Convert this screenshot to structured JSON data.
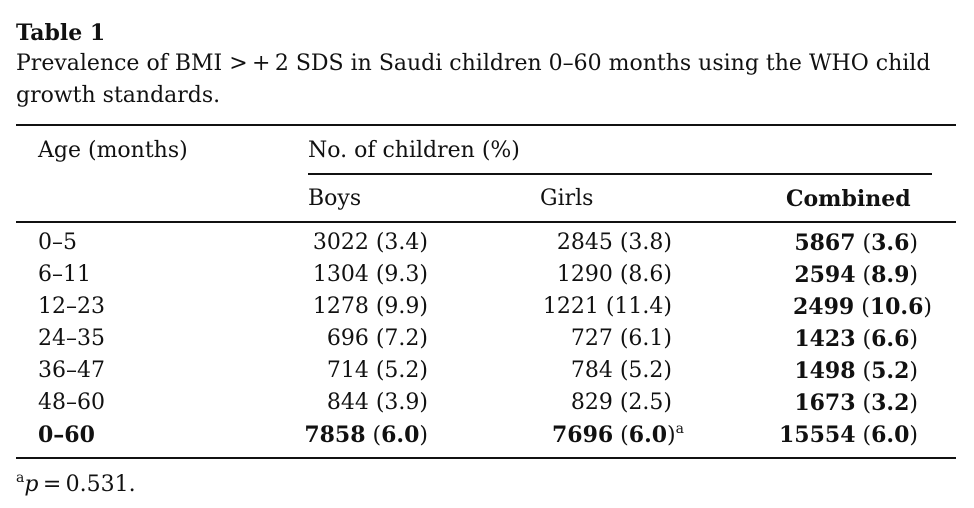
{
  "table": {
    "label": "Table 1",
    "caption": "Prevalence of BMI > + 2 SDS in Saudi children 0–60 months using the WHO child growth standards.",
    "headers": {
      "age": "Age (months)",
      "group": "No. of children (%)",
      "boys": "Boys",
      "girls": "Girls",
      "combined": "Combined"
    },
    "rows": [
      {
        "age": "0–5",
        "boys": "3022 (3.4)",
        "girls": "2845 (3.8)",
        "combined_n": "5867",
        "combined_p": "3.6"
      },
      {
        "age": "6–11",
        "boys": "1304 (9.3)",
        "girls": "1290 (8.6)",
        "combined_n": "2594",
        "combined_p": "8.9"
      },
      {
        "age": "12–23",
        "boys": "1278 (9.9)",
        "girls": "1221 (11.4)",
        "combined_n": "2499",
        "combined_p": "10.6"
      },
      {
        "age": "24–35",
        "boys": "696 (7.2)",
        "girls": "727 (6.1)",
        "combined_n": "1423",
        "combined_p": "6.6"
      },
      {
        "age": "36–47",
        "boys": "714 (5.2)",
        "girls": "784 (5.2)",
        "combined_n": "1498",
        "combined_p": "5.2"
      },
      {
        "age": "48–60",
        "boys": "844 (3.9)",
        "girls": "829 (2.5)",
        "combined_n": "1673",
        "combined_p": "3.2"
      }
    ],
    "total": {
      "age": "0–60",
      "boys_n": "7858",
      "boys_p": "6.0",
      "girls_n": "7696",
      "girls_p": "6.0",
      "girls_note": "a",
      "combined_n": "15554",
      "combined_p": "6.0"
    },
    "footnote": {
      "marker": "a",
      "variable": "p",
      "text": " = 0.531."
    }
  }
}
